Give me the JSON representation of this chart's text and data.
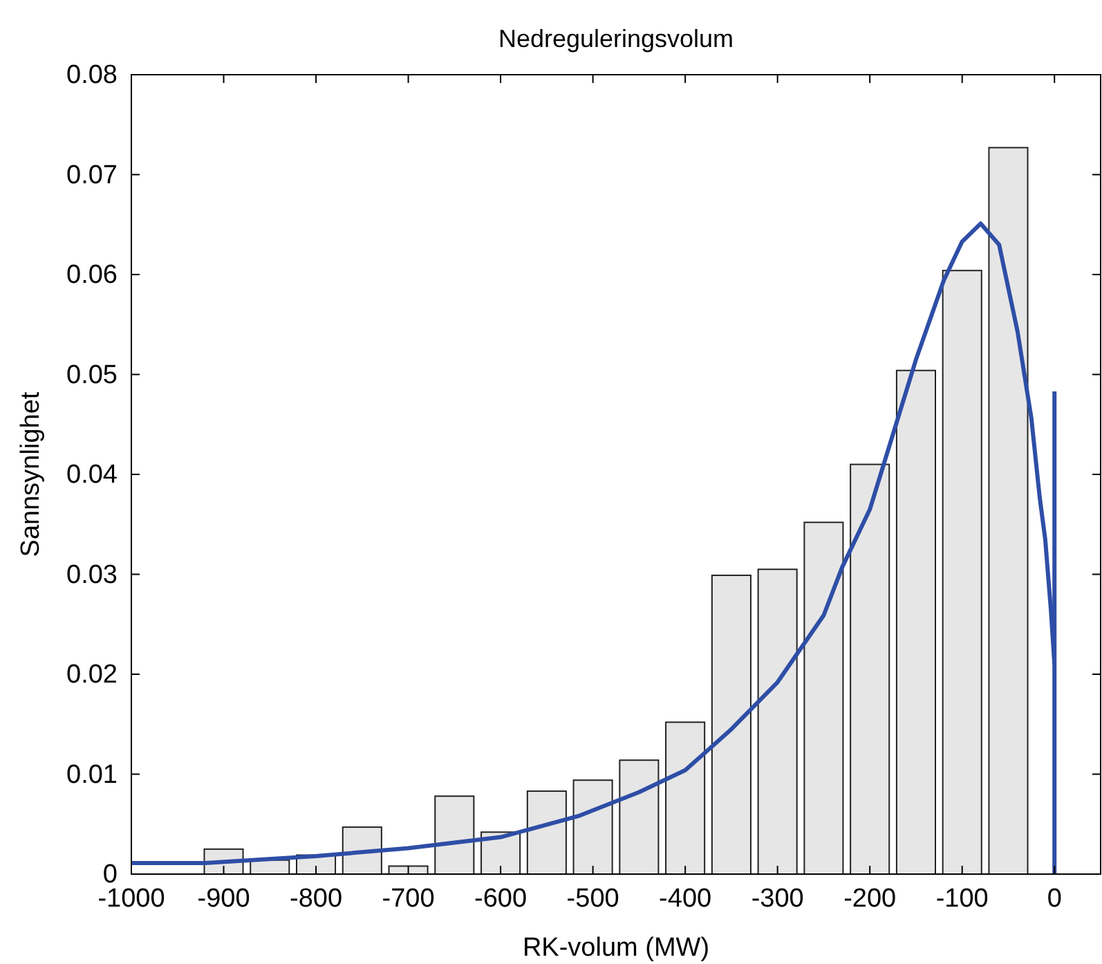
{
  "chart_data": {
    "type": "bar",
    "title": "Nedreguleringsvolum",
    "xlabel": "RK-volum (MW)",
    "ylabel": "Sannsynlighet",
    "xlim": [
      -1000,
      50
    ],
    "xticks": [
      -1000,
      -900,
      -800,
      -700,
      -600,
      -500,
      -400,
      -300,
      -200,
      -100,
      0
    ],
    "ylim": [
      0,
      0.08
    ],
    "yticks": [
      0,
      0.01,
      0.02,
      0.03,
      0.04,
      0.05,
      0.06,
      0.07,
      0.08
    ],
    "grid": false,
    "x": [
      -900,
      -850,
      -800,
      -750,
      -700,
      -650,
      -600,
      -550,
      -500,
      -450,
      -400,
      -350,
      -300,
      -250,
      -200,
      -150,
      -100,
      -50
    ],
    "series": [
      {
        "color": "#e6e6e6",
        "values": [
          0.0025,
          0.0014,
          0.0019,
          0.0047,
          0.0008,
          0.0078,
          0.0042,
          0.0083,
          0.0094,
          0.0114,
          0.0152,
          0.0299,
          0.0305,
          0.0352,
          0.041,
          0.0504,
          0.0604,
          0.0727
        ]
      },
      {
        "type": "line",
        "color": "#2e4ea6",
        "x": [
          -1000,
          -920,
          -800,
          -700,
          -600,
          -516,
          -450,
          -400,
          -350,
          -300,
          -250,
          -230,
          -200,
          -150,
          -120,
          -100,
          -80,
          -60,
          -40,
          -25,
          -16,
          -10,
          -4,
          0
        ],
        "values": [
          0.0011,
          0.0011,
          0.0018,
          0.0026,
          0.0037,
          0.0058,
          0.0082,
          0.0104,
          0.0145,
          0.0192,
          0.0259,
          0.0307,
          0.0365,
          0.0515,
          0.0594,
          0.0633,
          0.0651,
          0.063,
          0.0543,
          0.0456,
          0.0377,
          0.0335,
          0.0266,
          0.021
        ]
      },
      {
        "type": "line",
        "color": "#2e4ea6",
        "x": [
          0,
          0
        ],
        "values": [
          0,
          0.0483
        ]
      }
    ]
  }
}
